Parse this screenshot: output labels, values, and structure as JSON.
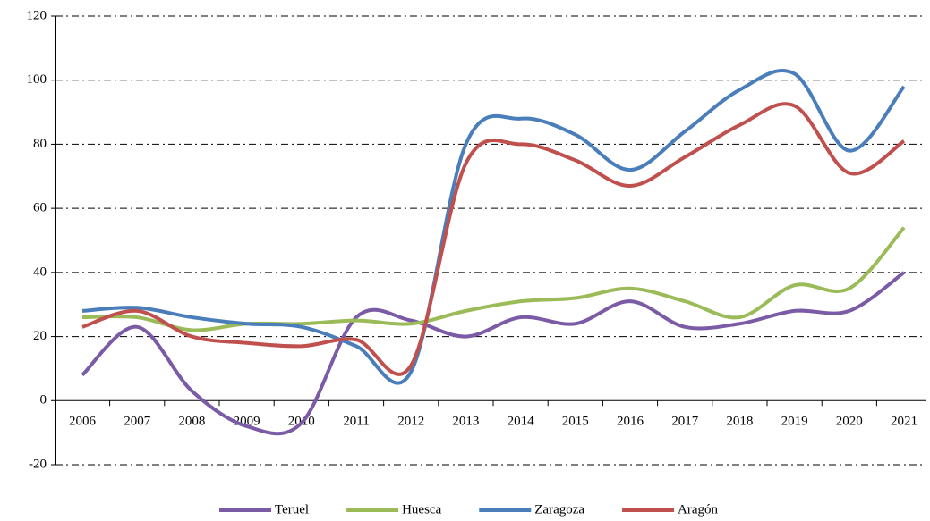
{
  "chart_data": {
    "type": "line",
    "categories": [
      "2006",
      "2007",
      "2008",
      "2009",
      "2010",
      "2011",
      "2012",
      "2013",
      "2014",
      "2015",
      "2016",
      "2017",
      "2018",
      "2019",
      "2020",
      "2021"
    ],
    "series": [
      {
        "name": "Teruel",
        "color": "#7b5aa6",
        "values": [
          8,
          23,
          3,
          -8,
          -7,
          26,
          25,
          20,
          26,
          24,
          31,
          23,
          24,
          28,
          28,
          40
        ]
      },
      {
        "name": "Huesca",
        "color": "#9bbb59",
        "values": [
          26,
          26,
          22,
          24,
          24,
          25,
          24,
          28,
          31,
          32,
          35,
          31,
          26,
          36,
          35,
          54
        ]
      },
      {
        "name": "Zaragoza",
        "color": "#4a7ebb",
        "values": [
          28,
          29,
          26,
          24,
          23,
          17,
          9,
          80,
          88,
          83,
          72,
          84,
          97,
          102,
          78,
          98
        ]
      },
      {
        "name": "Aragón",
        "color": "#c0504d",
        "values": [
          23,
          28,
          20,
          18,
          17,
          19,
          11,
          74,
          80,
          75,
          67,
          76,
          86,
          92,
          71,
          81
        ]
      }
    ],
    "ylim": [
      -20,
      120
    ],
    "yticks": [
      -20,
      0,
      20,
      40,
      60,
      80,
      100,
      120
    ],
    "grid": true,
    "legend": "bottom"
  }
}
